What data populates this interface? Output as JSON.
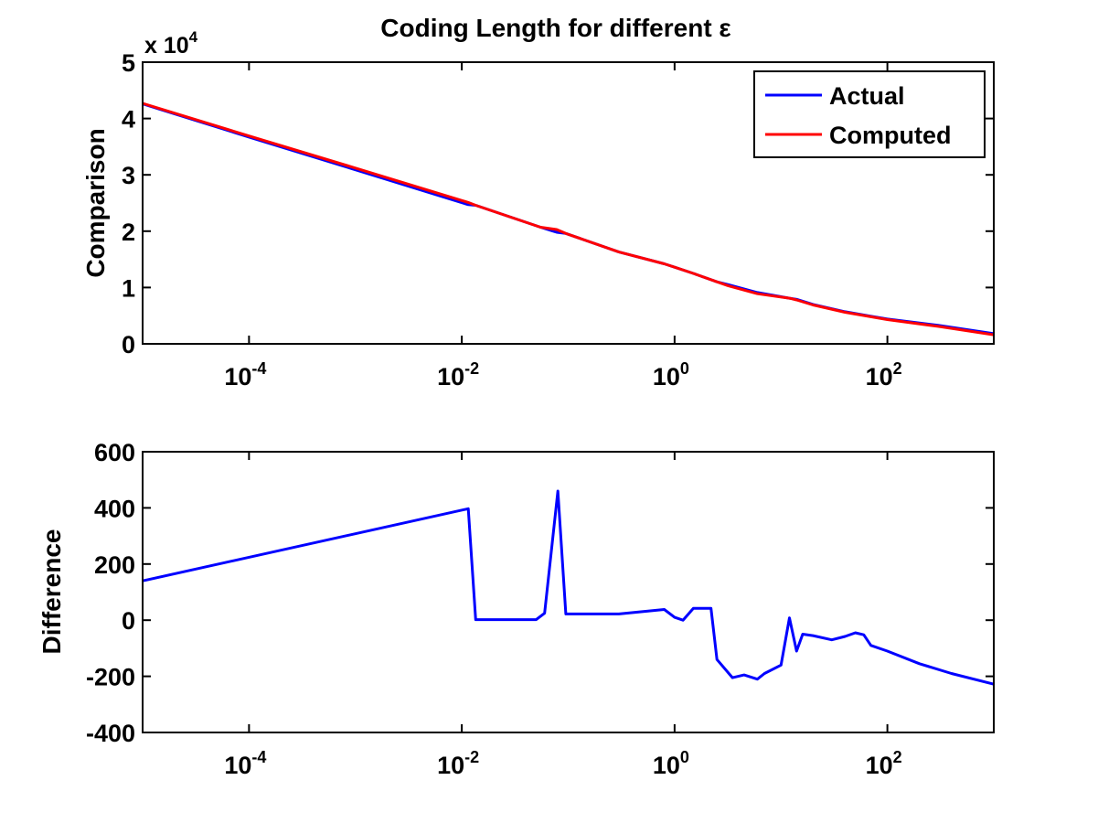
{
  "chart_data": [
    {
      "type": "line",
      "title": "Coding Length for different ε",
      "xlabel": "",
      "ylabel": "Comparison",
      "exponent_label": "x 10",
      "exponent_power": "4",
      "xscale": "log",
      "xlim": [
        1e-05,
        1000
      ],
      "ylim": [
        0,
        5
      ],
      "y_multiplier": 10000,
      "x_ticks": [
        0.0001,
        0.01,
        1,
        100
      ],
      "x_tick_labels": [
        {
          "base": "10",
          "exp": "-4"
        },
        {
          "base": "10",
          "exp": "-2"
        },
        {
          "base": "10",
          "exp": "0"
        },
        {
          "base": "10",
          "exp": "2"
        }
      ],
      "y_ticks": [
        0,
        1,
        2,
        3,
        4,
        5
      ],
      "y_tick_labels": [
        "0",
        "1",
        "2",
        "3",
        "4",
        "5"
      ],
      "grid": false,
      "legend_position": "top-right",
      "series": [
        {
          "name": "Actual",
          "color": "#0000ff",
          "x": [
            1e-05,
            0.0001,
            0.001,
            0.0115,
            0.0135,
            0.055,
            0.078,
            0.095,
            0.3,
            0.8,
            1.0,
            1.5,
            2.5,
            3.2,
            6,
            12,
            14,
            20,
            40,
            70,
            100,
            300,
            1000
          ],
          "y": [
            4.26,
            3.67,
            3.09,
            2.47,
            2.46,
            2.07,
            1.98,
            1.96,
            1.63,
            1.42,
            1.36,
            1.25,
            1.1,
            1.05,
            0.91,
            0.81,
            0.79,
            0.7,
            0.57,
            0.49,
            0.44,
            0.33,
            0.18
          ]
        },
        {
          "name": "Computed",
          "color": "#ff0000",
          "x": [
            1e-05,
            0.0001,
            0.001,
            0.0115,
            0.0135,
            0.055,
            0.078,
            0.095,
            0.3,
            0.8,
            1.0,
            1.5,
            2.5,
            3.2,
            6,
            12,
            14,
            20,
            40,
            70,
            100,
            300,
            1000
          ],
          "y": [
            4.27,
            3.69,
            3.12,
            2.51,
            2.46,
            2.07,
            2.03,
            1.96,
            1.63,
            1.42,
            1.36,
            1.25,
            1.1,
            1.03,
            0.89,
            0.81,
            0.78,
            0.69,
            0.56,
            0.48,
            0.43,
            0.31,
            0.16
          ]
        }
      ]
    },
    {
      "type": "line",
      "title": "",
      "xlabel": "",
      "ylabel": "Difference",
      "xscale": "log",
      "xlim": [
        1e-05,
        1000
      ],
      "ylim": [
        -400,
        600
      ],
      "x_ticks": [
        0.0001,
        0.01,
        1,
        100
      ],
      "x_tick_labels": [
        {
          "base": "10",
          "exp": "-4"
        },
        {
          "base": "10",
          "exp": "-2"
        },
        {
          "base": "10",
          "exp": "0"
        },
        {
          "base": "10",
          "exp": "2"
        }
      ],
      "y_ticks": [
        -400,
        -200,
        0,
        200,
        400,
        600
      ],
      "y_tick_labels": [
        "-400",
        "-200",
        "0",
        "200",
        "400",
        "600"
      ],
      "grid": false,
      "series": [
        {
          "color": "#0000ff",
          "x": [
            1e-05,
            0.0115,
            0.0135,
            0.05,
            0.06,
            0.08,
            0.095,
            0.3,
            0.8,
            1.0,
            1.2,
            1.5,
            2.2,
            2.5,
            3.5,
            4.5,
            6,
            7,
            10,
            12,
            14,
            16,
            20,
            30,
            40,
            50,
            60,
            70,
            100,
            200,
            400,
            1000
          ],
          "y": [
            140,
            397,
            2,
            2,
            25,
            460,
            22,
            22,
            38,
            10,
            0,
            42,
            42,
            -140,
            -205,
            -195,
            -210,
            -190,
            -160,
            8,
            -110,
            -50,
            -55,
            -70,
            -58,
            -45,
            -52,
            -90,
            -110,
            -155,
            -190,
            -228
          ]
        }
      ]
    }
  ],
  "legend": {
    "items": [
      {
        "label": "Actual",
        "color": "#0000ff"
      },
      {
        "label": "Computed",
        "color": "#ff0000"
      }
    ]
  }
}
